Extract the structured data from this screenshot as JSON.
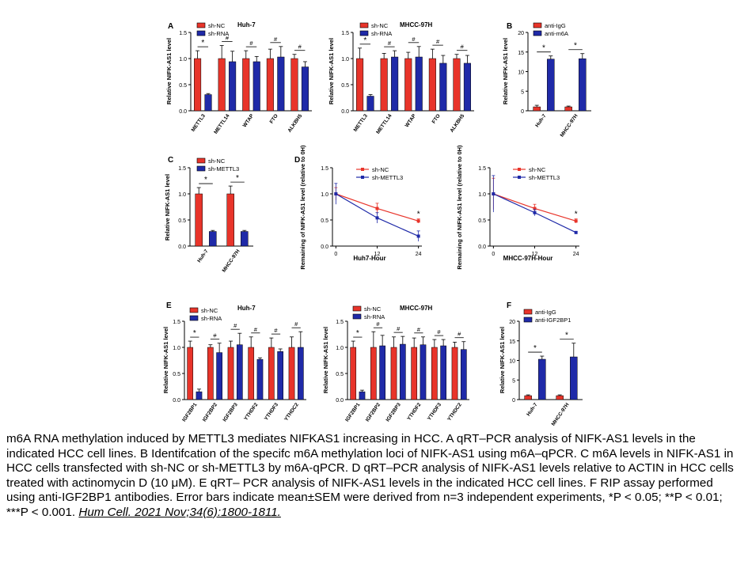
{
  "colors": {
    "red": "#e8342a",
    "blue": "#1f2aa8",
    "axis": "#000000"
  },
  "caption": {
    "text": "m6A RNA methylation induced by METTL3 mediates NIFKAS1 increasing in HCC. A qRT–PCR analysis of NIFK-AS1 levels in the indicated HCC cell lines. B Identifcation of the specifc m6A methylation loci of NIFK-AS1 using m6A–qPCR. C m6A levels in NIFK-AS1 in HCC cells transfected with sh-NC or sh-METTL3 by m6A-qPCR. D qRT–PCR analysis of NIFK-AS1 levels relative to ACTIN in HCC cells treated with actinomycin D (10 μM). E qRT– PCR analysis of NIFK-AS1 levels in the indicated HCC cell lines. F RIP assay performed using anti-IGF2BP1 antibodies. Error bars indicate mean±SEM were derived from n=3 independent experiments, *P < 0.05; **P < 0.01; ***P < 0.001.",
    "citation": "Hum Cell. 2021 Nov;34(6):1800-1811."
  },
  "chart_data": [
    {
      "id": "A1",
      "panel_label": "A",
      "type": "bar",
      "title": "Huh-7",
      "ylabel": "Relative NIFK-AS1 level",
      "ylim": [
        0,
        1.5
      ],
      "yticks": [
        "0.0",
        "0.5",
        "1.0",
        "1.5"
      ],
      "categories": [
        "METTL3",
        "METTL14",
        "WTAP",
        "FTO",
        "ALKBH5"
      ],
      "series": [
        {
          "name": "sh-NC",
          "values": [
            1.0,
            1.0,
            1.0,
            1.0,
            1.0
          ],
          "errors": [
            0.15,
            0.25,
            0.15,
            0.18,
            0.08
          ]
        },
        {
          "name": "sh-RNA",
          "values": [
            0.31,
            0.94,
            0.94,
            1.03,
            0.84
          ],
          "errors": [
            0.02,
            0.2,
            0.1,
            0.2,
            0.1
          ]
        }
      ],
      "sig": [
        "*",
        "#",
        "#",
        "#",
        "#"
      ]
    },
    {
      "id": "A2",
      "type": "bar",
      "title": "MHCC-97H",
      "ylabel": "Relative NIFK-AS1 level",
      "ylim": [
        0,
        1.5
      ],
      "yticks": [
        "0.0",
        "0.5",
        "1.0",
        "1.5"
      ],
      "categories": [
        "METTL3",
        "METTL14",
        "WTAP",
        "FTO",
        "ALKBH5"
      ],
      "series": [
        {
          "name": "sh-NC",
          "values": [
            1.0,
            1.0,
            1.0,
            1.0,
            1.0
          ],
          "errors": [
            0.2,
            0.1,
            0.12,
            0.18,
            0.08
          ]
        },
        {
          "name": "sh-RNA",
          "values": [
            0.28,
            1.03,
            1.03,
            0.91,
            0.91
          ],
          "errors": [
            0.03,
            0.12,
            0.2,
            0.15,
            0.15
          ]
        }
      ],
      "sig": [
        "*",
        "#",
        "#",
        "#",
        "#"
      ]
    },
    {
      "id": "B",
      "panel_label": "B",
      "type": "bar",
      "title": "",
      "ylabel": "Relative NIFK-AS1 level",
      "ylim": [
        0,
        20
      ],
      "yticks": [
        "0",
        "5",
        "10",
        "15",
        "20"
      ],
      "categories": [
        "Huh-7",
        "MHCC-97H"
      ],
      "series": [
        {
          "name": "anti-IgG",
          "values": [
            1.0,
            1.0
          ],
          "errors": [
            0.4,
            0.2
          ]
        },
        {
          "name": "anti-m6A",
          "values": [
            13.2,
            13.3
          ],
          "errors": [
            0.8,
            1.3
          ]
        }
      ],
      "sig": [
        "*",
        "*"
      ]
    },
    {
      "id": "C",
      "panel_label": "C",
      "type": "bar",
      "title": "",
      "ylabel": "Relative NIFK-AS1 level",
      "ylim": [
        0,
        1.5
      ],
      "yticks": [
        "0.0",
        "0.5",
        "1.0",
        "1.5"
      ],
      "categories": [
        "Huh-7",
        "MHCC-97H"
      ],
      "series": [
        {
          "name": "sh-NC",
          "values": [
            1.0,
            1.0
          ],
          "errors": [
            0.12,
            0.15
          ]
        },
        {
          "name": "sh-METTL3",
          "values": [
            0.28,
            0.28
          ],
          "errors": [
            0.02,
            0.02
          ]
        }
      ],
      "sig": [
        "*",
        "*"
      ]
    },
    {
      "id": "D1",
      "panel_label": "D",
      "type": "line",
      "title": "",
      "xlabel": "Huh7-Hour",
      "ylabel": "Remaining of NIFK-AS1 level (relative to 0H)",
      "ylim": [
        0,
        1.5
      ],
      "yticks": [
        "0.0",
        "0.5",
        "1.0",
        "1.5"
      ],
      "x": [
        0,
        12,
        24
      ],
      "xticks": [
        "0",
        "12",
        "24"
      ],
      "series": [
        {
          "name": "sh-NC",
          "values": [
            1.0,
            0.72,
            0.48
          ],
          "errors": [
            0.12,
            0.1,
            0.04
          ]
        },
        {
          "name": "sh-METTL3",
          "values": [
            1.0,
            0.54,
            0.19
          ],
          "errors": [
            0.2,
            0.1,
            0.1
          ]
        }
      ],
      "sig_label": "*"
    },
    {
      "id": "D2",
      "type": "line",
      "title": "",
      "xlabel": "MHCC-97H-Hour",
      "ylabel": "Remaining of NIFK-AS1 level (relative to 0H)",
      "ylim": [
        0,
        1.5
      ],
      "yticks": [
        "0.0",
        "0.5",
        "1.0",
        "1.5"
      ],
      "x": [
        0,
        12,
        24
      ],
      "xticks": [
        "0",
        "12",
        "24"
      ],
      "series": [
        {
          "name": "sh-NC",
          "values": [
            1.0,
            0.72,
            0.48
          ],
          "errors": [
            0.3,
            0.08,
            0.04
          ]
        },
        {
          "name": "sh-METTL3",
          "values": [
            1.0,
            0.64,
            0.26
          ],
          "errors": [
            0.35,
            0.06,
            0.02
          ]
        }
      ],
      "sig_label": "*"
    },
    {
      "id": "E1",
      "panel_label": "E",
      "type": "bar",
      "title": "Huh-7",
      "ylabel": "Relative NIFK-AS1 level",
      "ylim": [
        0,
        1.5
      ],
      "yticks": [
        "0.0",
        "0.5",
        "1.0",
        "1.5"
      ],
      "categories": [
        "IGF2BP1",
        "IGF2BP2",
        "IGF2BP3",
        "YTHDF2",
        "YTHDF3",
        "YTHDC2"
      ],
      "series": [
        {
          "name": "sh-NC",
          "values": [
            1.0,
            1.0,
            1.0,
            1.0,
            1.0,
            1.0
          ],
          "errors": [
            0.12,
            0.05,
            0.12,
            0.2,
            0.18,
            0.2
          ]
        },
        {
          "name": "sh-RNA",
          "values": [
            0.15,
            0.9,
            1.05,
            0.77,
            0.92,
            1.0
          ],
          "errors": [
            0.05,
            0.18,
            0.22,
            0.03,
            0.05,
            0.3
          ]
        }
      ],
      "sig": [
        "*",
        "#",
        "#",
        "#",
        "#",
        "#"
      ]
    },
    {
      "id": "E2",
      "type": "bar",
      "title": "MHCC-97H",
      "ylabel": "Relative NIFK-AS1 level",
      "ylim": [
        0,
        1.5
      ],
      "yticks": [
        "0.0",
        "0.5",
        "1.0",
        "1.5"
      ],
      "categories": [
        "IGF2BP1",
        "IGF2BP2",
        "IGF2BP3",
        "YTHDF2",
        "YTHDF3",
        "YTHDC2"
      ],
      "series": [
        {
          "name": "sh-NC",
          "values": [
            1.0,
            1.0,
            1.0,
            1.0,
            1.0,
            1.0
          ],
          "errors": [
            0.12,
            0.3,
            0.2,
            0.18,
            0.15,
            0.1
          ]
        },
        {
          "name": "sh-RNA",
          "values": [
            0.15,
            1.03,
            1.06,
            1.05,
            1.03,
            0.96
          ],
          "errors": [
            0.03,
            0.2,
            0.15,
            0.15,
            0.12,
            0.15
          ]
        }
      ],
      "sig": [
        "*",
        "#",
        "#",
        "#",
        "#",
        "#"
      ]
    },
    {
      "id": "F",
      "panel_label": "F",
      "type": "bar",
      "title": "",
      "ylabel": "Relative NIFK-AS1 level",
      "ylim": [
        0,
        20
      ],
      "yticks": [
        "0",
        "5",
        "10",
        "15",
        "20"
      ],
      "categories": [
        "Huh-7",
        "MHCC-97H"
      ],
      "series": [
        {
          "name": "anti-IgG",
          "values": [
            1.0,
            1.0
          ],
          "errors": [
            0.2,
            0.2
          ]
        },
        {
          "name": "anti-IGF2BP1",
          "values": [
            10.3,
            10.9
          ],
          "errors": [
            0.8,
            3.5
          ]
        }
      ],
      "sig": [
        "*",
        "*"
      ]
    }
  ]
}
